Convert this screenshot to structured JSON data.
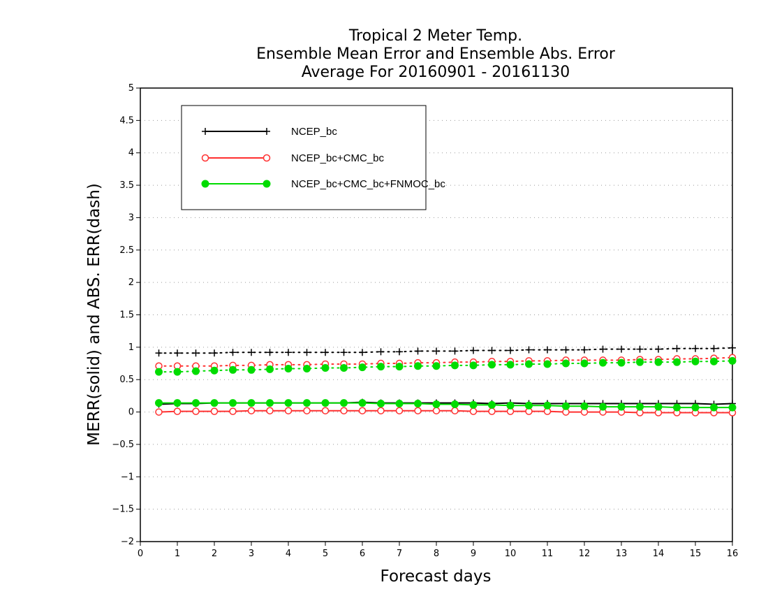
{
  "chart_data": {
    "type": "line",
    "title_lines": [
      "Tropical 2 Meter Temp.",
      "Ensemble Mean Error and Ensemble Abs. Error",
      "Average For 20160901 - 20161130"
    ],
    "xlabel": "Forecast days",
    "ylabel": "MERR(solid) and ABS. ERR(dash)",
    "xlim": [
      0,
      16
    ],
    "ylim": [
      -2,
      5
    ],
    "x_ticks": [
      "0",
      "1",
      "2",
      "3",
      "4",
      "5",
      "6",
      "7",
      "8",
      "9",
      "10",
      "11",
      "12",
      "13",
      "14",
      "15",
      "16"
    ],
    "y_ticks": [
      "−2",
      "−1.5",
      "−1",
      "−0.5",
      "0",
      "0.5",
      "1",
      "1.5",
      "2",
      "2.5",
      "3",
      "3.5",
      "4",
      "4.5",
      "5"
    ],
    "grid": true,
    "legend_position": "top-left",
    "x": [
      0.5,
      1,
      1.5,
      2,
      2.5,
      3,
      3.5,
      4,
      4.5,
      5,
      5.5,
      6,
      6.5,
      7,
      7.5,
      8,
      8.5,
      9,
      9.5,
      10,
      10.5,
      11,
      11.5,
      12,
      12.5,
      13,
      13.5,
      14,
      14.5,
      15,
      15.5,
      16
    ],
    "series": [
      {
        "name": "NCEP_bc",
        "color": "#000000",
        "marker": "plus",
        "mean_error": [
          0.12,
          0.13,
          0.13,
          0.14,
          0.14,
          0.14,
          0.14,
          0.14,
          0.14,
          0.14,
          0.14,
          0.15,
          0.14,
          0.14,
          0.14,
          0.14,
          0.14,
          0.14,
          0.13,
          0.14,
          0.13,
          0.13,
          0.13,
          0.13,
          0.13,
          0.13,
          0.13,
          0.13,
          0.13,
          0.13,
          0.12,
          0.13
        ],
        "abs_error": [
          0.91,
          0.91,
          0.91,
          0.91,
          0.92,
          0.92,
          0.92,
          0.92,
          0.92,
          0.92,
          0.92,
          0.92,
          0.93,
          0.93,
          0.94,
          0.94,
          0.94,
          0.95,
          0.95,
          0.95,
          0.96,
          0.96,
          0.96,
          0.96,
          0.97,
          0.97,
          0.97,
          0.97,
          0.98,
          0.98,
          0.98,
          0.99
        ]
      },
      {
        "name": "NCEP_bc+CMC_bc",
        "color": "#ff3030",
        "marker": "open-circle",
        "mean_error": [
          0.0,
          0.01,
          0.01,
          0.01,
          0.01,
          0.02,
          0.02,
          0.02,
          0.02,
          0.02,
          0.02,
          0.02,
          0.02,
          0.02,
          0.02,
          0.02,
          0.02,
          0.01,
          0.01,
          0.01,
          0.01,
          0.01,
          0.0,
          0.0,
          0.0,
          0.0,
          -0.01,
          -0.01,
          -0.01,
          -0.01,
          -0.01,
          -0.01
        ],
        "abs_error": [
          0.71,
          0.71,
          0.71,
          0.71,
          0.72,
          0.72,
          0.73,
          0.73,
          0.73,
          0.74,
          0.74,
          0.74,
          0.75,
          0.75,
          0.76,
          0.76,
          0.77,
          0.77,
          0.78,
          0.78,
          0.79,
          0.79,
          0.8,
          0.8,
          0.8,
          0.8,
          0.81,
          0.81,
          0.82,
          0.82,
          0.83,
          0.84
        ]
      },
      {
        "name": "NCEP_bc+CMC_bc+FNMOC_bc",
        "color": "#00dc00",
        "marker": "filled-circle",
        "mean_error": [
          0.14,
          0.14,
          0.14,
          0.14,
          0.14,
          0.14,
          0.14,
          0.14,
          0.14,
          0.14,
          0.14,
          0.14,
          0.13,
          0.13,
          0.13,
          0.12,
          0.12,
          0.11,
          0.11,
          0.1,
          0.1,
          0.1,
          0.09,
          0.09,
          0.08,
          0.08,
          0.08,
          0.08,
          0.07,
          0.07,
          0.07,
          0.07
        ],
        "abs_error": [
          0.62,
          0.62,
          0.63,
          0.64,
          0.65,
          0.65,
          0.66,
          0.67,
          0.67,
          0.68,
          0.68,
          0.69,
          0.7,
          0.7,
          0.71,
          0.71,
          0.72,
          0.72,
          0.73,
          0.73,
          0.74,
          0.74,
          0.75,
          0.75,
          0.76,
          0.76,
          0.77,
          0.77,
          0.77,
          0.78,
          0.78,
          0.79
        ]
      }
    ]
  }
}
